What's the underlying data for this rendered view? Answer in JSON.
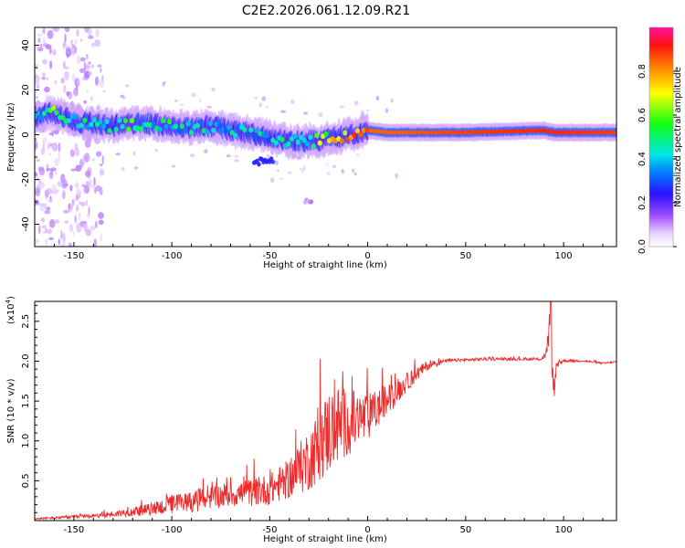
{
  "title": "C2E2.2026.061.12.09.R21",
  "chart_data": [
    {
      "type": "heatmap",
      "xlabel": "Height of straight line (km)",
      "ylabel": "Frequency (Hz)",
      "xlim": [
        -170,
        127
      ],
      "ylim": [
        -50,
        48
      ],
      "xticks": [
        -150,
        -100,
        -50,
        0,
        50,
        100
      ],
      "yticks": [
        -40,
        -20,
        0,
        20,
        40
      ],
      "colorbar": {
        "label": "Normalized spectral amplitude",
        "range": [
          0,
          1
        ],
        "ticks": [
          0.0,
          0.2,
          0.4,
          0.6,
          0.8
        ]
      },
      "ridge": {
        "x": [
          -170,
          -160,
          -150,
          -140,
          -130,
          -120,
          -110,
          -100,
          -90,
          -80,
          -70,
          -60,
          -50,
          -40,
          -30,
          -20,
          -10,
          0,
          10,
          50,
          90,
          95,
          127
        ],
        "y": [
          8,
          10,
          6,
          5,
          4,
          5,
          5,
          4,
          3,
          4,
          2,
          1,
          -1,
          -3,
          -3,
          -2,
          0,
          2,
          1,
          1,
          2,
          1,
          1
        ],
        "amplitude": [
          0.35,
          0.55,
          0.4,
          0.45,
          0.4,
          0.5,
          0.45,
          0.45,
          0.4,
          0.45,
          0.4,
          0.4,
          0.4,
          0.45,
          0.5,
          0.7,
          0.75,
          0.85,
          0.85,
          0.88,
          0.9,
          0.9,
          0.88
        ]
      },
      "features": [
        {
          "x": [
            -58,
            -48
          ],
          "y": -12,
          "amplitude": 0.25
        },
        {
          "x": [
            -32,
            -28
          ],
          "y": -30,
          "amplitude": 0.1
        }
      ]
    },
    {
      "type": "line",
      "xlabel": "Height of straight line (km)",
      "ylabel": "SNR (10 * v/v)",
      "yscale_label": "(x10",
      "yscale_exp": "4",
      "xlim": [
        -170,
        127
      ],
      "ylim": [
        0,
        2.75
      ],
      "xticks": [
        -150,
        -100,
        -50,
        0,
        50,
        100
      ],
      "yticks": [
        0.5,
        1.0,
        1.5,
        2.0,
        2.5
      ],
      "series": [
        {
          "name": "SNR",
          "color": "#ee2a2a",
          "x": [
            -170,
            -150,
            -130,
            -110,
            -100,
            -90,
            -80,
            -70,
            -60,
            -50,
            -40,
            -30,
            -25,
            -20,
            -15,
            -10,
            -5,
            0,
            10,
            20,
            30,
            40,
            60,
            80,
            88,
            91,
            93,
            95,
            97,
            100,
            110,
            120,
            127
          ],
          "y": [
            0.02,
            0.04,
            0.07,
            0.12,
            0.17,
            0.2,
            0.25,
            0.28,
            0.3,
            0.33,
            0.45,
            0.65,
            0.8,
            0.95,
            1.05,
            1.1,
            1.15,
            1.2,
            1.45,
            1.7,
            1.92,
            2.0,
            2.02,
            2.02,
            2.02,
            2.05,
            2.4,
            1.6,
            1.95,
            2.0,
            2.0,
            1.97,
            1.99
          ],
          "noise": [
            0.01,
            0.02,
            0.04,
            0.08,
            0.12,
            0.14,
            0.15,
            0.16,
            0.17,
            0.2,
            0.25,
            0.4,
            0.45,
            0.55,
            0.5,
            0.42,
            0.38,
            0.3,
            0.2,
            0.12,
            0.06,
            0.02,
            0.02,
            0.015,
            0.015,
            0.06,
            0.2,
            0.15,
            0.05,
            0.02,
            0.015,
            0.01,
            0.01
          ]
        }
      ]
    }
  ]
}
